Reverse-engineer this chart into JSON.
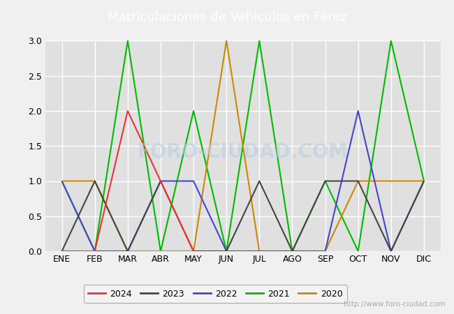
{
  "title": "Matriculaciones de Vehiculos en Férez",
  "months": [
    "ENE",
    "FEB",
    "MAR",
    "ABR",
    "MAY",
    "JUN",
    "JUL",
    "AGO",
    "SEP",
    "OCT",
    "NOV",
    "DIC"
  ],
  "series": {
    "2024": {
      "values": [
        0,
        0,
        2,
        1,
        0,
        null,
        null,
        null,
        null,
        null,
        null,
        null
      ],
      "color": "#ee3333"
    },
    "2023": {
      "values": [
        0,
        1,
        0,
        1,
        0,
        0,
        1,
        0,
        1,
        1,
        0,
        1
      ],
      "color": "#444444"
    },
    "2022": {
      "values": [
        1,
        0,
        0,
        1,
        1,
        0,
        0,
        0,
        0,
        2,
        0,
        1
      ],
      "color": "#4444cc"
    },
    "2021": {
      "values": [
        1,
        0,
        3,
        0,
        2,
        0,
        3,
        0,
        1,
        0,
        3,
        1
      ],
      "color": "#00bb00"
    },
    "2020": {
      "values": [
        1,
        1,
        0,
        0,
        0,
        3,
        0,
        0,
        0,
        1,
        1,
        1
      ],
      "color": "#cc8800"
    }
  },
  "ylim": [
    0.0,
    3.0
  ],
  "yticks": [
    0.0,
    0.5,
    1.0,
    1.5,
    2.0,
    2.5,
    3.0
  ],
  "header_color": "#5575b8",
  "fig_bg_color": "#f0f0f0",
  "plot_bg_color": "#e0e0e0",
  "title_color": "#ffffff",
  "title_fontsize": 13,
  "watermark_text": "FORO-CIUDAD.COM",
  "watermark_url": "http://www.foro-ciudad.com",
  "legend_years": [
    "2024",
    "2023",
    "2022",
    "2021",
    "2020"
  ],
  "draw_order": [
    "2021",
    "2020",
    "2022",
    "2023",
    "2024"
  ]
}
